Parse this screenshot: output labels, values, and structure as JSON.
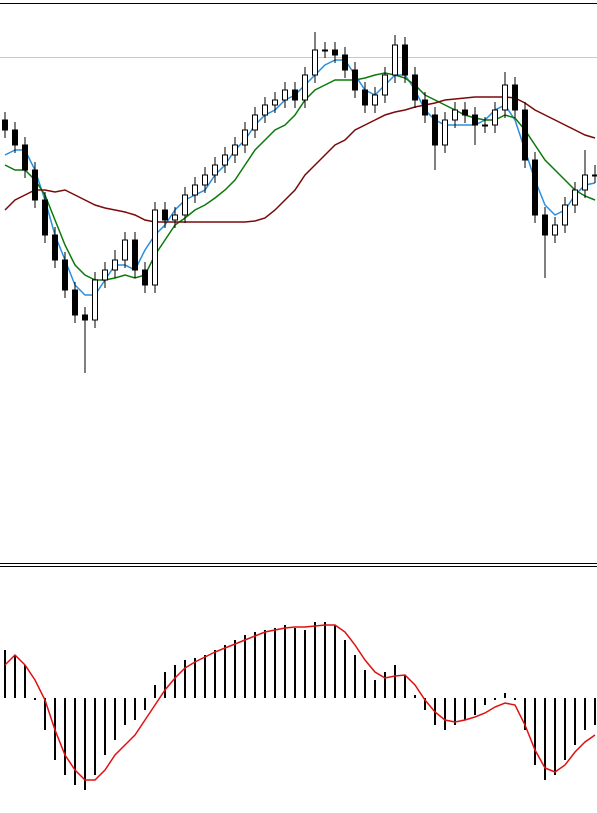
{
  "chart_data": [
    {
      "type": "candlestick",
      "ylim": [
        37,
        595
      ],
      "up_color": "#ffffff",
      "down_color": "#000000",
      "open": [
        480,
        470,
        455,
        430,
        400,
        365,
        340,
        310,
        285,
        280,
        320,
        330,
        340,
        360,
        330,
        315,
        390,
        380,
        385,
        405,
        415,
        425,
        435,
        445,
        455,
        470,
        485,
        495,
        500,
        510,
        500,
        525,
        550,
        550,
        545,
        530,
        510,
        495,
        505,
        525,
        555,
        525,
        500,
        485,
        455,
        480,
        490,
        485,
        475,
        475,
        490,
        515,
        490,
        440,
        385,
        365,
        375,
        395,
        410,
        425
      ],
      "high": [
        488,
        478,
        463,
        438,
        408,
        373,
        348,
        318,
        293,
        328,
        338,
        350,
        368,
        368,
        338,
        398,
        398,
        393,
        413,
        423,
        433,
        443,
        453,
        463,
        478,
        493,
        503,
        508,
        518,
        518,
        533,
        568,
        558,
        558,
        553,
        538,
        518,
        513,
        533,
        565,
        563,
        533,
        508,
        493,
        488,
        498,
        498,
        493,
        483,
        498,
        528,
        523,
        498,
        448,
        393,
        383,
        403,
        418,
        450,
        435
      ],
      "low": [
        462,
        447,
        422,
        392,
        357,
        332,
        302,
        277,
        227,
        272,
        312,
        322,
        332,
        322,
        307,
        307,
        372,
        372,
        377,
        397,
        407,
        417,
        427,
        437,
        447,
        462,
        477,
        487,
        492,
        492,
        492,
        517,
        542,
        537,
        522,
        502,
        487,
        487,
        497,
        517,
        517,
        492,
        477,
        430,
        447,
        472,
        477,
        455,
        467,
        467,
        482,
        482,
        432,
        377,
        322,
        357,
        367,
        387,
        402,
        417
      ],
      "close": [
        470,
        455,
        430,
        400,
        365,
        340,
        310,
        285,
        280,
        320,
        330,
        340,
        360,
        330,
        315,
        390,
        380,
        385,
        405,
        415,
        425,
        435,
        445,
        455,
        470,
        485,
        495,
        500,
        510,
        500,
        525,
        550,
        550,
        545,
        530,
        510,
        495,
        505,
        525,
        555,
        525,
        500,
        485,
        455,
        480,
        490,
        485,
        475,
        475,
        490,
        515,
        490,
        440,
        385,
        365,
        375,
        395,
        410,
        425,
        425
      ],
      "series": [
        {
          "color": "#2a8fe0",
          "values": [
            445,
            450,
            450,
            430,
            400,
            365,
            340,
            315,
            305,
            305,
            320,
            335,
            335,
            330,
            350,
            365,
            375,
            390,
            400,
            405,
            410,
            425,
            435,
            450,
            460,
            475,
            485,
            490,
            500,
            505,
            515,
            525,
            535,
            540,
            540,
            525,
            510,
            505,
            515,
            525,
            525,
            510,
            490,
            480,
            475,
            475,
            475,
            475,
            480,
            490,
            495,
            480,
            450,
            420,
            395,
            385,
            390,
            405,
            415,
            417
          ]
        },
        {
          "color": "#0a7a0a",
          "values": [
            435,
            430,
            430,
            420,
            405,
            380,
            355,
            335,
            325,
            320,
            320,
            322,
            325,
            322,
            325,
            345,
            360,
            375,
            382,
            390,
            395,
            402,
            410,
            420,
            435,
            450,
            460,
            470,
            475,
            485,
            500,
            510,
            515,
            520,
            520,
            520,
            522,
            525,
            527,
            525,
            522,
            515,
            505,
            500,
            495,
            490,
            485,
            482,
            480,
            480,
            485,
            482,
            470,
            455,
            440,
            430,
            420,
            410,
            404,
            400
          ]
        },
        {
          "color": "#7a0a0a",
          "values": [
            390,
            400,
            405,
            410,
            410,
            408,
            410,
            405,
            400,
            395,
            392,
            390,
            388,
            385,
            380,
            378,
            378,
            378,
            378,
            378,
            378,
            378,
            378,
            378,
            378,
            379,
            382,
            390,
            400,
            410,
            425,
            435,
            445,
            455,
            460,
            470,
            475,
            480,
            485,
            488,
            490,
            493,
            495,
            497,
            500,
            501,
            502,
            503,
            503,
            503,
            503,
            502,
            497,
            490,
            485,
            480,
            475,
            470,
            465,
            462
          ]
        }
      ]
    },
    {
      "type": "macd",
      "ylim": [
        -115,
        131
      ],
      "color": "#000000",
      "values": [
        48,
        43,
        33,
        -2,
        -32,
        -62,
        -77,
        -87,
        -92,
        -77,
        -57,
        -42,
        -27,
        -22,
        -12,
        13,
        26,
        33,
        38,
        40,
        43,
        48,
        53,
        58,
        63,
        66,
        68,
        70,
        73,
        70,
        68,
        76,
        76,
        73,
        58,
        43,
        28,
        18,
        26,
        33,
        23,
        3,
        -12,
        -27,
        -32,
        -27,
        -22,
        -17,
        -7,
        -2,
        5,
        -2,
        -32,
        -67,
        -82,
        -77,
        -62,
        -47,
        -32,
        -27
      ],
      "series": [
        {
          "color": "#e01010",
          "values": [
            33,
            43,
            33,
            18,
            -2,
            -32,
            -57,
            -72,
            -82,
            -82,
            -72,
            -57,
            -47,
            -37,
            -22,
            -7,
            8,
            20,
            30,
            36,
            41,
            46,
            50,
            54,
            58,
            62,
            66,
            68,
            70,
            71,
            71,
            72,
            73,
            73,
            66,
            53,
            38,
            26,
            20,
            22,
            23,
            13,
            -2,
            -14,
            -22,
            -24,
            -22,
            -19,
            -15,
            -9,
            -5,
            -7,
            -27,
            -52,
            -70,
            -74,
            -67,
            -54,
            -44,
            -37
          ]
        }
      ]
    }
  ]
}
